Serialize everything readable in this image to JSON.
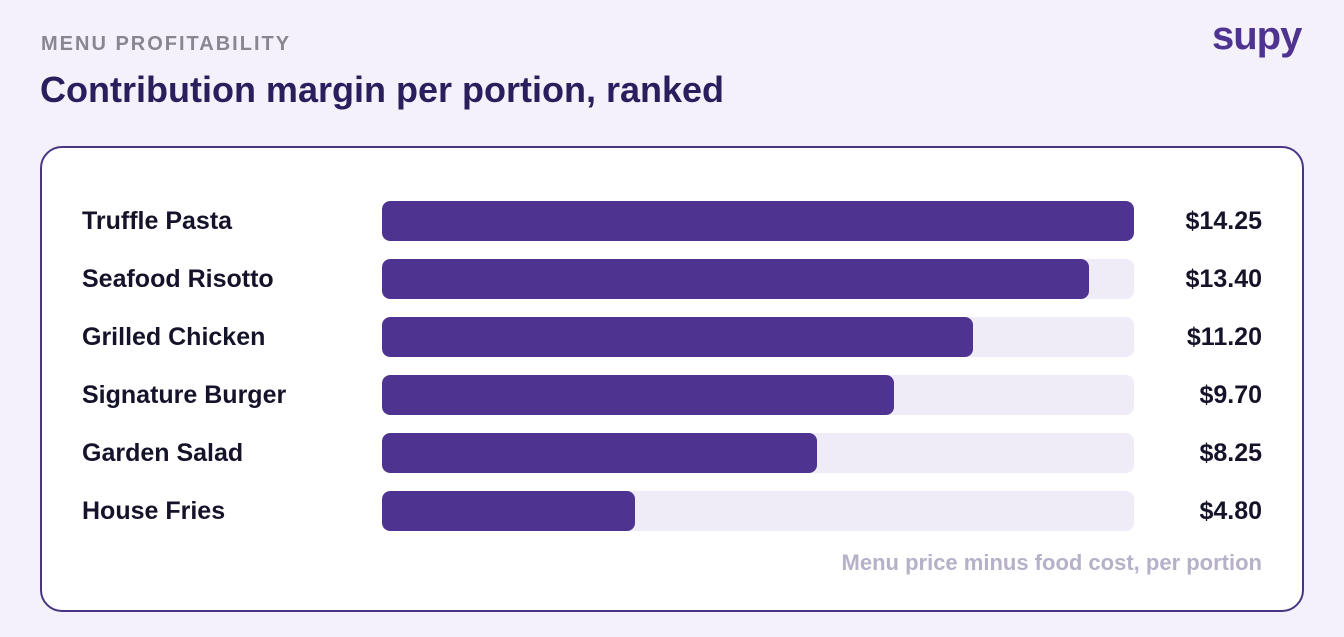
{
  "header": {
    "eyebrow": "MENU PROFITABILITY",
    "title": "Contribution margin per portion, ranked",
    "logo": "supy"
  },
  "colors": {
    "bar": "#4f3390",
    "track": "#efecf8",
    "title": "#2a1e5c"
  },
  "chart_data": {
    "type": "bar",
    "orientation": "horizontal",
    "title": "Contribution margin per portion, ranked",
    "categories": [
      "Truffle Pasta",
      "Seafood Risotto",
      "Grilled Chicken",
      "Signature Burger",
      "Garden Salad",
      "House Fries"
    ],
    "values": [
      14.25,
      13.4,
      11.2,
      9.7,
      8.25,
      4.8
    ],
    "value_labels": [
      "$14.25",
      "$13.40",
      "$11.20",
      "$9.70",
      "$8.25",
      "$4.80"
    ],
    "xlim": [
      0,
      14.25
    ],
    "grid": false,
    "footnote": "Menu price minus food cost, per portion"
  }
}
